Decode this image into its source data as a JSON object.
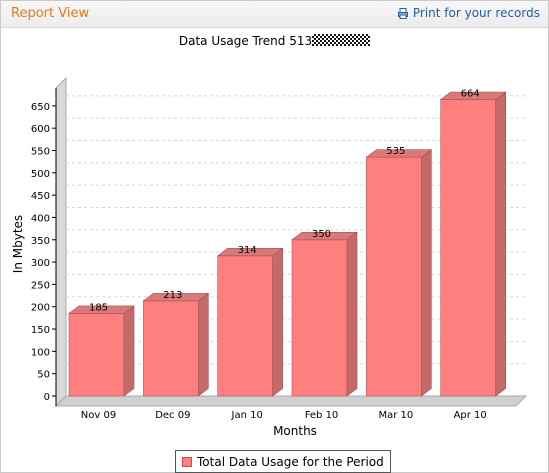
{
  "header": {
    "title": "Report View",
    "print_label": "Print for your records"
  },
  "chart_data": {
    "type": "bar",
    "title": "Data Usage Trend 513",
    "categories": [
      "Nov 09",
      "Dec 09",
      "Jan 10",
      "Feb 10",
      "Mar 10",
      "Apr 10"
    ],
    "series": [
      {
        "name": "Total Data Usage for the Period",
        "values": [
          185,
          213,
          314,
          350,
          535,
          664
        ]
      }
    ],
    "data_labels": [
      "185",
      "213",
      "314",
      "350",
      "535",
      "664"
    ],
    "xlabel": "Months",
    "ylabel": "In Mbytes",
    "ylim": [
      0,
      690
    ],
    "yticks": [
      0,
      50,
      100,
      150,
      200,
      250,
      300,
      350,
      400,
      450,
      500,
      550,
      600,
      650
    ],
    "grid": true,
    "legend_position": "bottom",
    "bar_color": "#ff7f7f",
    "bar_side_color": "#c46a6a",
    "bar_top_color": "#d97a7a"
  }
}
